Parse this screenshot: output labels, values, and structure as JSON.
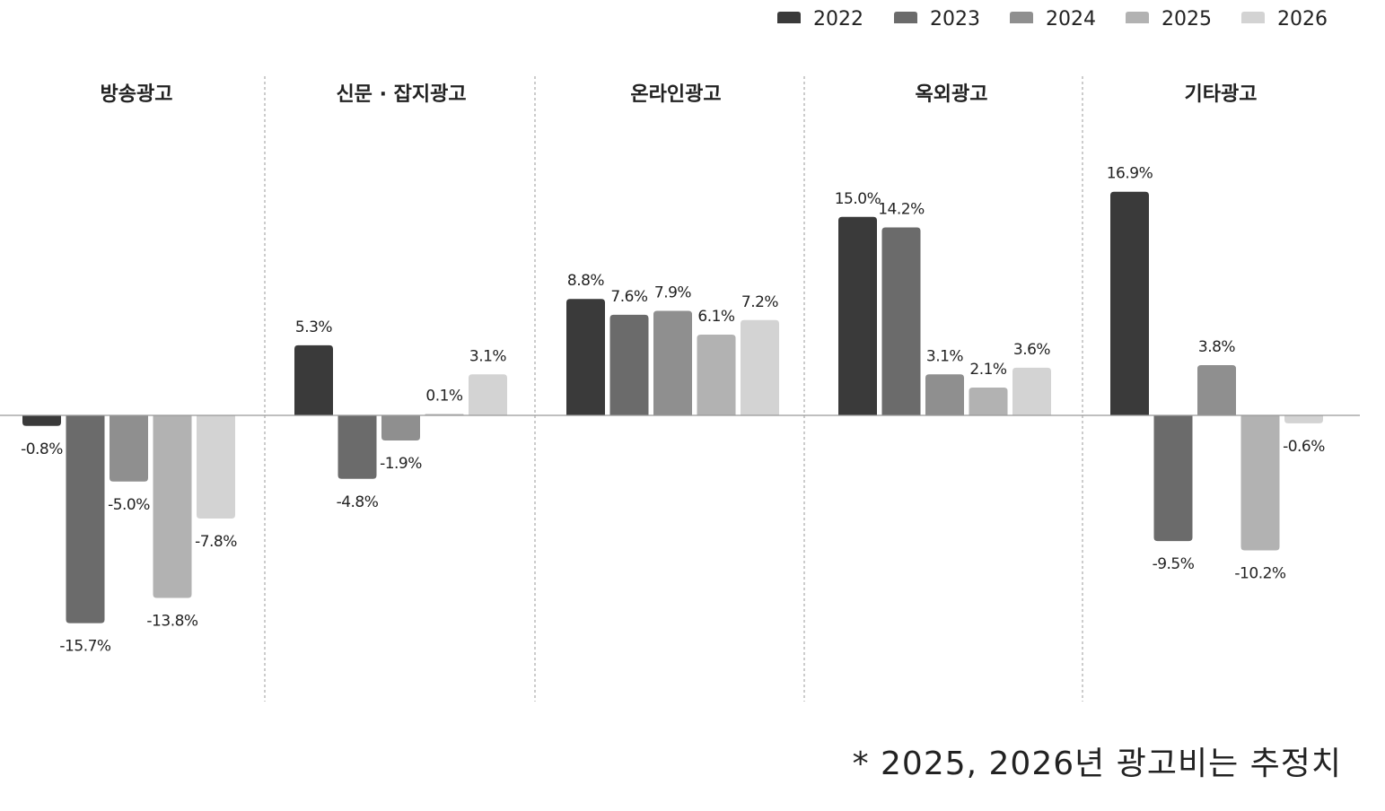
{
  "chart_data": {
    "type": "bar",
    "title": "",
    "xlabel": "",
    "ylabel": "",
    "categories": [
      "방송광고",
      "신문 · 잡지광고",
      "온라인광고",
      "옥외광고",
      "기타광고"
    ],
    "series": [
      {
        "name": "2022",
        "color": "#3a3a3a",
        "values": [
          -0.8,
          5.3,
          8.8,
          15.0,
          16.9
        ],
        "labels": [
          "-0.8%",
          "5.3%",
          "8.8%",
          "15.0%",
          "16.9%"
        ]
      },
      {
        "name": "2023",
        "color": "#6b6b6b",
        "values": [
          -15.7,
          -4.8,
          7.6,
          14.2,
          -9.5
        ],
        "labels": [
          "-15.7%",
          "-4.8%",
          "7.6%",
          "14.2%",
          "-9.5%"
        ]
      },
      {
        "name": "2024",
        "color": "#8f8f8f",
        "values": [
          -5.0,
          -1.9,
          7.9,
          3.1,
          3.8
        ],
        "labels": [
          "-5.0%",
          "-1.9%",
          "7.9%",
          "3.1%",
          "3.8%"
        ]
      },
      {
        "name": "2025",
        "color": "#b2b2b2",
        "values": [
          -13.8,
          0.1,
          6.1,
          2.1,
          -10.2
        ],
        "labels": [
          "-13.8%",
          "0.1%",
          "6.1%",
          "2.1%",
          "-10.2%"
        ]
      },
      {
        "name": "2026",
        "color": "#d3d3d3",
        "values": [
          -7.8,
          3.1,
          7.2,
          3.6,
          -0.6
        ],
        "labels": [
          "-7.8%",
          "3.1%",
          "7.2%",
          "3.6%",
          "-0.6%"
        ]
      }
    ],
    "legend": "top-right",
    "grid": false,
    "ylim": [
      -20,
      20
    ]
  },
  "footnote": "*  2025,  2026년  광고비는  추정치"
}
